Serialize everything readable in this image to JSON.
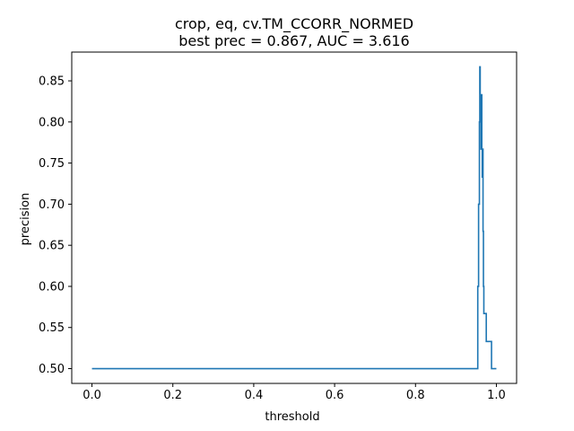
{
  "chart_data": {
    "type": "line",
    "title_line1": "crop, eq, cv.TM_CCORR_NORMED",
    "title_line2": "best prec = 0.867, AUC = 3.616",
    "xlabel": "threshold",
    "ylabel": "precision",
    "xlim": [
      -0.05,
      1.05
    ],
    "ylim": [
      0.482,
      0.885
    ],
    "xticks": [
      0.0,
      0.2,
      0.4,
      0.6,
      0.8,
      1.0
    ],
    "xtick_labels": [
      "0.0",
      "0.2",
      "0.4",
      "0.6",
      "0.8",
      "1.0"
    ],
    "yticks": [
      0.5,
      0.55,
      0.6,
      0.65,
      0.7,
      0.75,
      0.8,
      0.85
    ],
    "ytick_labels": [
      "0.50",
      "0.55",
      "0.60",
      "0.65",
      "0.70",
      "0.75",
      "0.80",
      "0.85"
    ],
    "grid": false,
    "line_color": "#1f77b4",
    "series": [
      {
        "name": "precision",
        "x": [
          0.0,
          0.954,
          0.954,
          0.956,
          0.956,
          0.958,
          0.958,
          0.959,
          0.959,
          0.96,
          0.96,
          0.961,
          0.961,
          0.962,
          0.962,
          0.963,
          0.963,
          0.964,
          0.964,
          0.965,
          0.965,
          0.966,
          0.966,
          0.967,
          0.967,
          0.968,
          0.968,
          0.969,
          0.969,
          0.97,
          0.97,
          0.975,
          0.975,
          0.988,
          0.988,
          1.0
        ],
        "y": [
          0.5,
          0.5,
          0.6,
          0.6,
          0.7,
          0.7,
          0.8,
          0.8,
          0.867,
          0.867,
          0.8,
          0.8,
          0.833,
          0.833,
          0.767,
          0.767,
          0.833,
          0.833,
          0.767,
          0.767,
          0.733,
          0.733,
          0.767,
          0.767,
          0.667,
          0.667,
          0.6,
          0.6,
          0.567,
          0.567,
          0.567,
          0.567,
          0.533,
          0.533,
          0.5,
          0.5
        ]
      }
    ]
  }
}
